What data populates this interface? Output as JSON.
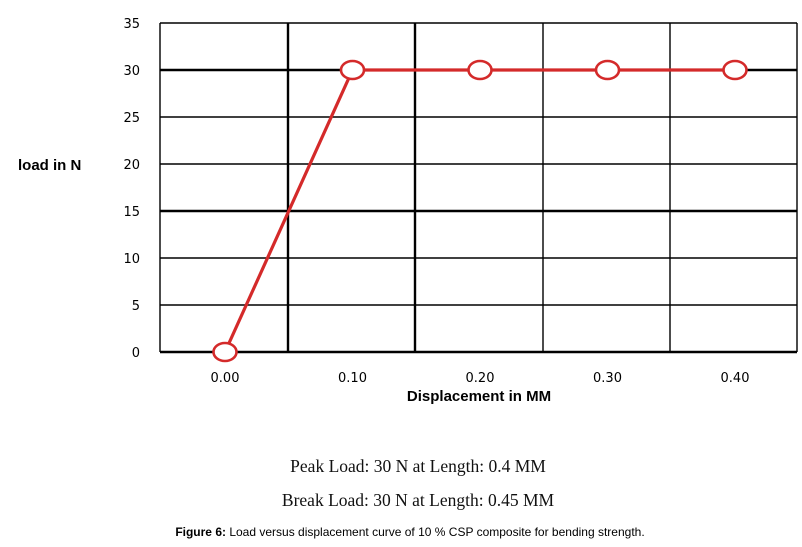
{
  "chart_data": {
    "type": "line",
    "title": "",
    "xlabel": "Displacement in MM",
    "ylabel": "load in N",
    "x_tick_labels": [
      "0.00",
      "0.10",
      "0.20",
      "0.30",
      "0.40"
    ],
    "y_tick_labels": [
      "0",
      "5",
      "10",
      "15",
      "20",
      "25",
      "30",
      "35"
    ],
    "x": [
      0.0,
      0.1,
      0.2,
      0.3,
      0.4
    ],
    "ylim": [
      0,
      35
    ],
    "grid": true,
    "legend": "none",
    "series": [
      {
        "values": [
          0,
          30,
          30,
          30,
          30
        ],
        "color": "#d42a2a"
      }
    ]
  },
  "notes": {
    "peak": "Peak Load: 30 N at Length: 0.4 MM",
    "break": "Break Load: 30 N at Length: 0.45 MM"
  },
  "caption": {
    "label": "Figure 6:",
    "text": "Load versus displacement curve of 10 % CSP composite for bending strength."
  }
}
